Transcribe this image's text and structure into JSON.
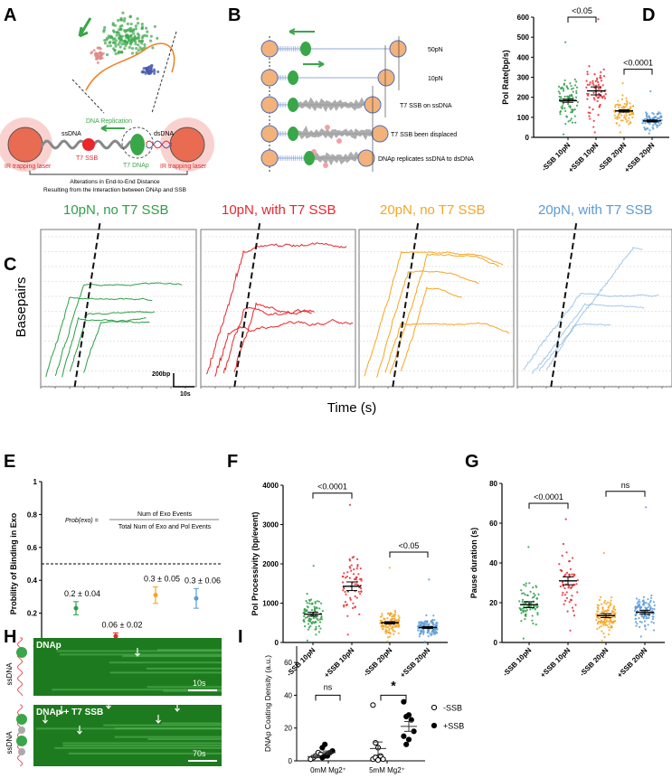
{
  "panel_labels": {
    "A": "A",
    "B": "B",
    "C": "C",
    "D": "D",
    "E": "E",
    "F": "F",
    "G": "G",
    "H": "H",
    "I": "I"
  },
  "panel_A": {
    "dna_replication": "DNA Replication",
    "ssdna": "ssDNA",
    "dsdna": "dsDNA",
    "t7_ssb": "T7 SSB",
    "t7_dnap": "T7 DNAp",
    "ir_laser_left": "IR trapping laser",
    "ir_laser_right": "IR trapping laser",
    "caption_line1": "Alterations in End-to-End Distance",
    "caption_line2": "Resulting from the Interaction between DNAp and SSB"
  },
  "panel_B": {
    "rows": [
      "50pN",
      "10pN",
      "T7 SSB on ssDNA",
      "T7 SSB been displaced",
      "DNAp replicates ssDNA to dsDNA"
    ]
  },
  "panel_C": {
    "ylabel": "Basepairs",
    "xlabel": "Time (s)",
    "scalebar_bp": "200bp",
    "scalebar_time": "10s",
    "conditions": [
      {
        "title": "10pN, no T7 SSB",
        "color": "#2e9e48"
      },
      {
        "title": "10pN, with T7 SSB",
        "color": "#e8262b"
      },
      {
        "title": "20pN, no T7 SSB",
        "color": "#f5a623"
      },
      {
        "title": "20pN, with T7 SSB",
        "color": "#5b9bd5"
      }
    ]
  },
  "panel_H": {
    "top_label": "DNAp",
    "top_scale": "10s",
    "bottom_label": "DNAp + T7 SSB",
    "bottom_scale": "70s",
    "ssdna_top": "ssDNA",
    "ssdna_bottom": "ssDNA"
  },
  "chart_data": [
    {
      "id": "D",
      "type": "scatter",
      "ylabel": "Pol Rate(bp/s)",
      "ylim": [
        0,
        600
      ],
      "yticks": [
        0,
        100,
        200,
        300,
        400,
        500,
        600
      ],
      "categories": [
        "-SSB 10pN",
        "+SSB 10pN",
        "-SSB 20pN",
        "+SSB 20pN"
      ],
      "colors": [
        "#2e9e48",
        "#e8262b",
        "#f5a623",
        "#5b9bd5"
      ],
      "means": [
        183,
        232,
        132,
        82
      ],
      "sem": [
        8,
        20,
        6,
        5
      ],
      "ranges": [
        [
          15,
          475
        ],
        [
          25,
          590
        ],
        [
          25,
          270
        ],
        [
          20,
          230
        ]
      ],
      "n_points": [
        90,
        70,
        80,
        85
      ],
      "comparisons": [
        {
          "pair": [
            0,
            1
          ],
          "label": "<0.05",
          "level": 600
        },
        {
          "pair": [
            2,
            3
          ],
          "label": "<0.0001",
          "level": 340
        }
      ]
    },
    {
      "id": "E",
      "type": "scatter",
      "ylabel": "Probility of Binding in Exo",
      "ylim": [
        0,
        1.0
      ],
      "yticks": [
        0.0,
        0.2,
        0.4,
        0.6,
        0.8,
        1.0
      ],
      "categories": [
        "-SSB 10pN",
        "+SSB 10pN",
        "-SSB 20pN",
        "+SSB 20pN"
      ],
      "colors": [
        "#2e9e48",
        "#e8262b",
        "#f5a623",
        "#5b9bd5"
      ],
      "values": [
        0.23,
        0.06,
        0.31,
        0.29
      ],
      "errors": [
        0.04,
        0.02,
        0.05,
        0.06
      ],
      "data_labels": [
        "0.2 ± 0.04",
        "0.06 ± 0.02",
        "0.3 ± 0.05",
        "0.3 ± 0.06"
      ],
      "reference_line": 0.5,
      "formula_lhs": "Prob(exo) =",
      "formula_numerator": "Num of Exo Events",
      "formula_denominator": "Total Num of Exo and Pol Events"
    },
    {
      "id": "F",
      "type": "scatter",
      "ylabel": "Pol Processivity (bp/event)",
      "ylim": [
        0,
        4000
      ],
      "yticks": [
        0,
        1000,
        2000,
        3000,
        4000
      ],
      "categories": [
        "-SSB 10pN",
        "+SSB 10pN",
        "-SSB 20pN",
        "+SSB 20pN"
      ],
      "colors": [
        "#2e9e48",
        "#e8262b",
        "#f5a623",
        "#5b9bd5"
      ],
      "means": [
        720,
        1430,
        500,
        380
      ],
      "sem": [
        50,
        110,
        30,
        25
      ],
      "ranges": [
        [
          50,
          1950
        ],
        [
          200,
          3500
        ],
        [
          30,
          1900
        ],
        [
          20,
          1600
        ]
      ],
      "n_points": [
        90,
        70,
        110,
        120
      ],
      "comparisons": [
        {
          "pair": [
            0,
            1
          ],
          "label": "<0.0001",
          "level": 3800
        },
        {
          "pair": [
            2,
            3
          ],
          "label": "<0.05",
          "level": 2300
        }
      ]
    },
    {
      "id": "G",
      "type": "scatter",
      "ylabel": "Pause duration (s)",
      "ylim": [
        0,
        80
      ],
      "yticks": [
        0,
        20,
        40,
        60,
        80
      ],
      "categories": [
        "-SSB 10pN",
        "+SSB 10pN",
        "-SSB 20pN",
        "+SSB 20pN"
      ],
      "colors": [
        "#2e9e48",
        "#e8262b",
        "#f5a623",
        "#5b9bd5"
      ],
      "means": [
        19,
        31,
        13.5,
        15.2
      ],
      "sem": [
        1.5,
        2,
        1,
        1
      ],
      "ranges": [
        [
          2,
          48
        ],
        [
          6,
          62
        ],
        [
          1,
          45
        ],
        [
          3,
          68
        ]
      ],
      "n_points": [
        80,
        60,
        130,
        120
      ],
      "comparisons": [
        {
          "pair": [
            0,
            1
          ],
          "label": "<0.0001",
          "level": 70
        },
        {
          "pair": [
            2,
            3
          ],
          "label": "ns",
          "level": 76
        }
      ]
    },
    {
      "id": "I",
      "type": "scatter",
      "ylabel": "DNAp Coating Density (a.u.)",
      "ylim": [
        0,
        70
      ],
      "yticks": [
        0,
        20,
        40,
        60
      ],
      "categories": [
        "0mM Mg2⁺",
        "5mM Mg2⁺"
      ],
      "series": [
        {
          "name": "-SSB",
          "fill": "open",
          "values": [
            [
              1,
              2,
              3,
              5,
              4,
              1
            ],
            [
              34,
              11,
              8,
              3,
              1,
              1,
              2,
              0.5
            ]
          ],
          "means": [
            2.6,
            7.5
          ],
          "sem": [
            0.7,
            4
          ]
        },
        {
          "name": "+SSB",
          "fill": "filled",
          "values": [
            [
              2,
              3,
              4,
              5,
              6,
              8,
              10,
              3
            ],
            [
              36,
              27,
              28,
              25,
              18,
              15,
              10,
              13
            ]
          ],
          "means": [
            5,
            21
          ],
          "sem": [
            1,
            3
          ]
        }
      ],
      "comparisons": [
        {
          "group": 0,
          "label": "ns",
          "level": 40
        },
        {
          "group": 1,
          "label": "*",
          "level": 40
        }
      ]
    }
  ]
}
